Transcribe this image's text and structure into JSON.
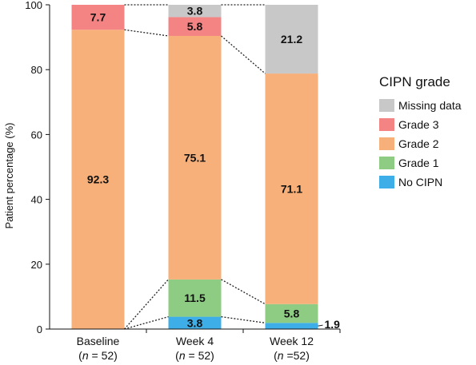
{
  "chart_data": {
    "type": "bar",
    "stacked": true,
    "ylabel": "Patient percentage (%)",
    "ylim": [
      0,
      100
    ],
    "yticks": [
      0,
      20,
      40,
      60,
      80,
      100
    ],
    "categories": [
      {
        "name": "Baseline",
        "n_text": "(n = 52)",
        "n_prefix": "(",
        "n_italic": "n",
        "n_suffix": " = 52)"
      },
      {
        "name": "Week 4",
        "n_text": "(n = 52)",
        "n_prefix": "(",
        "n_italic": "n",
        "n_suffix": " = 52)"
      },
      {
        "name": "Week 12",
        "n_text": "(n =52)",
        "n_prefix": "(",
        "n_italic": "n",
        "n_suffix": " =52)"
      }
    ],
    "series": [
      {
        "name": "No CIPN",
        "color": "#3DAEE8",
        "values": [
          0,
          3.8,
          1.9
        ],
        "labels": [
          "",
          "3.8",
          "1.9"
        ]
      },
      {
        "name": "Grade 1",
        "color": "#8DCC82",
        "values": [
          0,
          11.5,
          5.8
        ],
        "labels": [
          "",
          "11.5",
          "5.8"
        ]
      },
      {
        "name": "Grade 2",
        "color": "#F7B07A",
        "values": [
          92.3,
          75.1,
          71.1
        ],
        "labels": [
          "92.3",
          "75.1",
          "71.1"
        ]
      },
      {
        "name": "Grade 3",
        "color": "#F48484",
        "values": [
          7.7,
          5.8,
          0
        ],
        "labels": [
          "7.7",
          "5.8",
          ""
        ]
      },
      {
        "name": "Missing data",
        "color": "#C8C8C8",
        "values": [
          0,
          3.8,
          21.2
        ],
        "labels": [
          "",
          "3.8",
          "21.2"
        ]
      }
    ],
    "legend": {
      "title": "CIPN grade",
      "position": "right",
      "order": [
        "Missing data",
        "Grade 3",
        "Grade 2",
        "Grade 1",
        "No CIPN"
      ]
    },
    "connectors": "dotted lines between adjacent bar segment boundaries",
    "grid": false
  }
}
